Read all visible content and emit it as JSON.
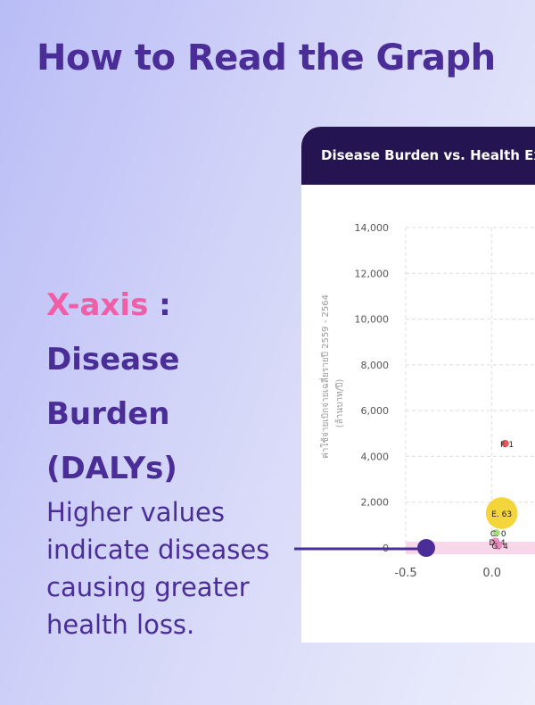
{
  "header": {
    "title": "How to Read the Graph"
  },
  "explainer": {
    "axis": "X-axis",
    "separator": ":",
    "heading": "Disease Burden (DALYs)",
    "text": "Higher values indicate diseases causing greater health loss."
  },
  "chart_data": {
    "type": "scatter",
    "title": "Disease Burden vs. Health Ex",
    "y_label": "ค่าใช้จ่ายเบิกจ่ายเฉลี่ยรายปี 2559 - 2564",
    "y_label_unit": "(ล้านบาท/ปี)",
    "x": [
      0.057,
      0.077,
      0.026,
      0.02,
      0.036
    ],
    "values": [
      1520,
      4560,
      660,
      270,
      120
    ],
    "sizes": [
      63,
      1,
      0,
      4,
      4
    ],
    "labels": [
      "E. 63",
      "F. 1",
      "C. 0",
      "D. 4",
      "G. 4"
    ],
    "colors": [
      "#f4d225",
      "#e2474c",
      "#9bd66c",
      "#e886b8",
      "#e886b8"
    ],
    "xlim": [
      -0.5,
      0.25
    ],
    "ylim": [
      0,
      14000
    ],
    "xticks": [
      -0.5,
      {
        "value": 0,
        "label": "0.0"
      }
    ],
    "yticks": [
      0,
      {
        "value": 2000,
        "label": "2,000"
      },
      {
        "value": 4000,
        "label": "4,000"
      },
      {
        "value": 6000,
        "label": "6,000"
      },
      {
        "value": 8000,
        "label": "8,000"
      },
      {
        "value": 10000,
        "label": "10,000"
      },
      {
        "value": 12000,
        "label": "12,000"
      },
      {
        "value": 14000,
        "label": "14,000"
      }
    ],
    "grid": true
  }
}
